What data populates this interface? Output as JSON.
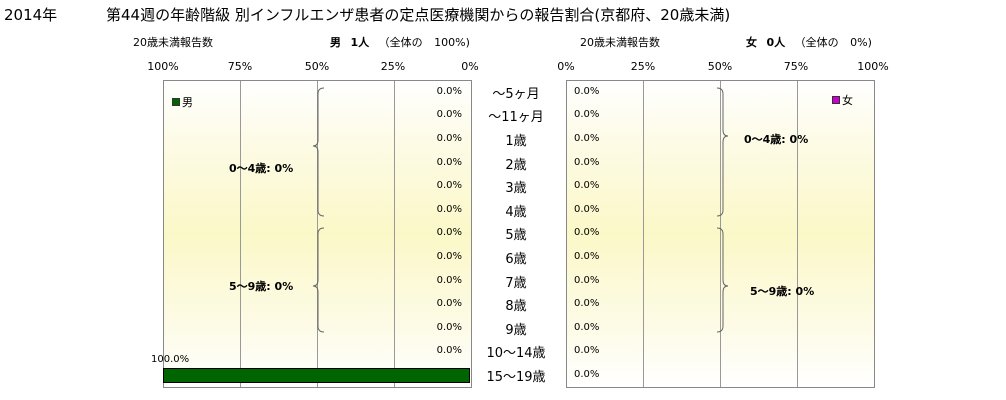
{
  "title": {
    "year": "2014年",
    "main": "第44週の年齢階級 別インフルエンザ患者の定点医療機関からの報告割合(京都府、20歳未満)"
  },
  "left_panel": {
    "count_label": "20歳未満報告数",
    "sex_label": "男",
    "count_value": "1人",
    "share_label": "（全体の",
    "share_value": "100%)",
    "ticks": [
      "100%",
      "75%",
      "50%",
      "25%",
      "0%"
    ],
    "legend": "男",
    "color": "#006400",
    "groups": [
      "0～4歳: 0%",
      "5～9歳: 0%"
    ]
  },
  "right_panel": {
    "count_label": "20歳未満報告数",
    "sex_label": "女",
    "count_value": "0人",
    "share_label": "（全体の",
    "share_value": "0%)",
    "ticks": [
      "0%",
      "25%",
      "50%",
      "75%",
      "100%"
    ],
    "legend": "女",
    "color": "#cc00cc",
    "groups": [
      "0～4歳: 0%",
      "5～9歳: 0%"
    ]
  },
  "chart_data": {
    "type": "bar",
    "categories": [
      "～5ヶ月",
      "～11ヶ月",
      "1歳",
      "2歳",
      "3歳",
      "4歳",
      "5歳",
      "6歳",
      "7歳",
      "8歳",
      "9歳",
      "10～14歳",
      "15～19歳"
    ],
    "series": [
      {
        "name": "男",
        "values": [
          0,
          0,
          0,
          0,
          0,
          0,
          0,
          0,
          0,
          0,
          0,
          0,
          100
        ],
        "labels": [
          "0.0%",
          "0.0%",
          "0.0%",
          "0.0%",
          "0.0%",
          "0.0%",
          "0.0%",
          "0.0%",
          "0.0%",
          "0.0%",
          "0.0%",
          "0.0%",
          "100.0%"
        ]
      },
      {
        "name": "女",
        "values": [
          0,
          0,
          0,
          0,
          0,
          0,
          0,
          0,
          0,
          0,
          0,
          0,
          0
        ],
        "labels": [
          "0.0%",
          "0.0%",
          "0.0%",
          "0.0%",
          "0.0%",
          "0.0%",
          "0.0%",
          "0.0%",
          "0.0%",
          "0.0%",
          "0.0%",
          "0.0%",
          "0.0%"
        ]
      }
    ],
    "xlim": [
      0,
      100
    ],
    "orientation": "horizontal-pyramid"
  }
}
